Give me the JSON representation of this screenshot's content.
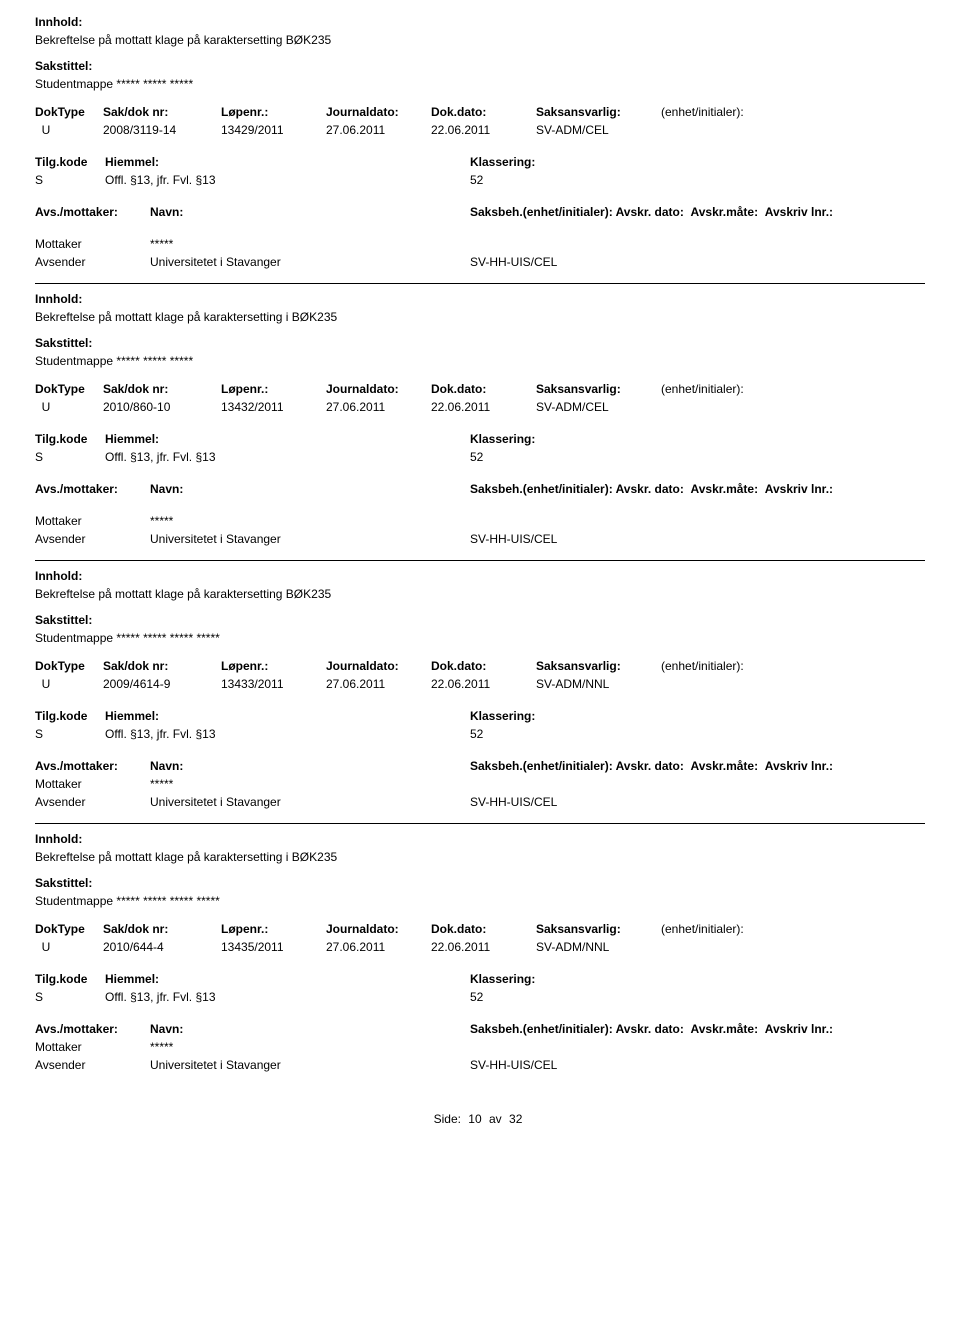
{
  "labels": {
    "innhold": "Innhold:",
    "sakstittel": "Sakstittel:",
    "doktype": "DokType",
    "sakdoknr": "Sak/dok nr:",
    "lopenr": "Løpenr.:",
    "journaldato": "Journaldato:",
    "dokdato": "Dok.dato:",
    "saksansvarlig": "Saksansvarlig:",
    "enhet": "(enhet/initialer):",
    "tilgkode": "Tilg.kode",
    "hjemmel": "Hiemmel:",
    "klassering": "Klassering:",
    "avsmottaker": "Avs./mottaker:",
    "navn": "Navn:",
    "saksbeh": "Saksbeh.(enhet/initialer):",
    "avskrdato": "Avskr. dato:",
    "avskrmate": "Avskr.måte:",
    "avskrivlnr": "Avskriv lnr.:",
    "mottaker": "Mottaker",
    "avsender": "Avsender"
  },
  "records": [
    {
      "innhold": "Bekreftelse på mottatt klage på karaktersetting BØK235",
      "sakstittel": "Studentmappe ***** ***** *****",
      "doktype": "U",
      "sakdoknr": "2008/3119-14",
      "lopenr": "13429/2011",
      "journaldato": "27.06.2011",
      "dokdato": "22.06.2011",
      "saksansvarlig": "SV-ADM/CEL",
      "tilgkode": "S",
      "hjemmel": "Offl. §13, jfr. Fvl. §13",
      "klassering": "52",
      "mottaker_navn": "*****",
      "avsender_navn": "Universitetet i Stavanger",
      "avsender_unit": "SV-HH-UIS/CEL",
      "show_avs_header": false
    },
    {
      "innhold": "Bekreftelse på mottatt klage på karaktersetting i BØK235",
      "sakstittel": "Studentmappe ***** ***** *****",
      "doktype": "U",
      "sakdoknr": "2010/860-10",
      "lopenr": "13432/2011",
      "journaldato": "27.06.2011",
      "dokdato": "22.06.2011",
      "saksansvarlig": "SV-ADM/CEL",
      "tilgkode": "S",
      "hjemmel": "Offl. §13, jfr. Fvl. §13",
      "klassering": "52",
      "mottaker_navn": "*****",
      "avsender_navn": "Universitetet i Stavanger",
      "avsender_unit": "SV-HH-UIS/CEL",
      "show_avs_header": false
    },
    {
      "innhold": "Bekreftelse på mottatt klage på karaktersetting BØK235",
      "sakstittel": "Studentmappe ***** ***** ***** *****",
      "doktype": "U",
      "sakdoknr": "2009/4614-9",
      "lopenr": "13433/2011",
      "journaldato": "27.06.2011",
      "dokdato": "22.06.2011",
      "saksansvarlig": "SV-ADM/NNL",
      "tilgkode": "S",
      "hjemmel": "Offl. §13, jfr. Fvl. §13",
      "klassering": "52",
      "mottaker_navn": "*****",
      "avsender_navn": "Universitetet i Stavanger",
      "avsender_unit": "SV-HH-UIS/CEL",
      "show_avs_header": true
    },
    {
      "innhold": "Bekreftelse på mottatt klage på karaktersetting i BØK235",
      "sakstittel": "Studentmappe ***** ***** ***** *****",
      "doktype": "U",
      "sakdoknr": "2010/644-4",
      "lopenr": "13435/2011",
      "journaldato": "27.06.2011",
      "dokdato": "22.06.2011",
      "saksansvarlig": "SV-ADM/NNL",
      "tilgkode": "S",
      "hjemmel": "Offl. §13, jfr. Fvl. §13",
      "klassering": "52",
      "mottaker_navn": "*****",
      "avsender_navn": "Universitetet i Stavanger",
      "avsender_unit": "SV-HH-UIS/CEL",
      "show_avs_header": true
    }
  ],
  "footer": {
    "side": "Side:",
    "page": "10",
    "av": "av",
    "total": "32"
  }
}
